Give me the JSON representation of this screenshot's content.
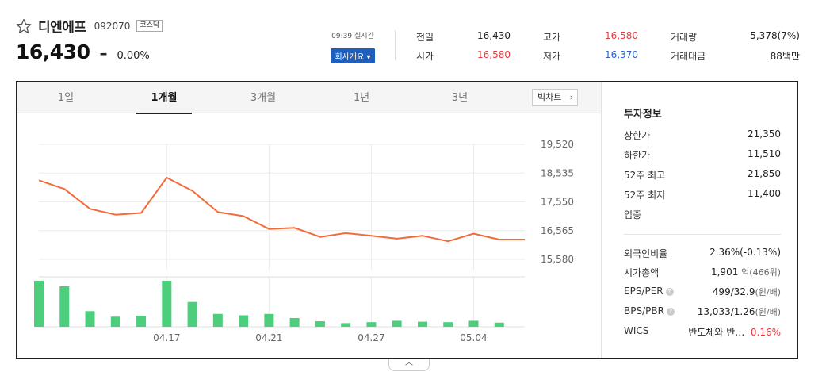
{
  "stock": {
    "name": "디엔에프",
    "code": "092070",
    "market": "코스닥",
    "price": "16,430",
    "change_symbol": "–",
    "change_pct": "0.00%",
    "time": "09:39 실시간",
    "company_button": "회사개요"
  },
  "quote": {
    "prev_close": {
      "label": "전일",
      "value": "16,430"
    },
    "high": {
      "label": "고가",
      "value": "16,580"
    },
    "volume": {
      "label": "거래량",
      "value": "5,378(7%)"
    },
    "open": {
      "label": "시가",
      "value": "16,580"
    },
    "low": {
      "label": "저가",
      "value": "16,370"
    },
    "amount": {
      "label": "거래대금",
      "value": "88백만"
    }
  },
  "tabs": [
    "1일",
    "1개월",
    "3개월",
    "1년",
    "3년"
  ],
  "active_tab": "1개월",
  "big_chart_label": "빅차트",
  "invest": {
    "title": "투자정보",
    "upper_limit": {
      "label": "상한가",
      "value": "21,350"
    },
    "lower_limit": {
      "label": "하한가",
      "value": "11,510"
    },
    "w52_high": {
      "label": "52주 최고",
      "value": "21,850"
    },
    "w52_low": {
      "label": "52주 최저",
      "value": "11,400"
    },
    "sector": {
      "label": "업종",
      "value": ""
    },
    "foreign": {
      "label": "외국인비율",
      "value": "2.36%(-0.13%)"
    },
    "mktcap": {
      "label": "시가총액",
      "value": "1,901",
      "unit": "억(466위)"
    },
    "eps_per": {
      "label": "EPS/PER",
      "value": "499/32.9",
      "unit": "(원/배)"
    },
    "bps_pbr": {
      "label": "BPS/PBR",
      "value": "13,033/1.26",
      "unit": "(원/배)"
    },
    "wics": {
      "label": "WICS",
      "value": "반도체와 반…",
      "pct": "0.16%"
    }
  },
  "colors": {
    "up": "#e8383d",
    "down": "#2a63c8",
    "line": "#f26b3a",
    "volume": "#4cce7c",
    "button": "#1e5fbe"
  },
  "chart_data": {
    "type": "line",
    "y_ticks": [
      "19,520",
      "18,535",
      "17,550",
      "16,565",
      "15,580"
    ],
    "ylim": [
      15580,
      19520
    ],
    "x_tick_labels": [
      "04.17",
      "04.21",
      "04.27",
      "05.04"
    ],
    "x_tick_index": [
      5,
      9,
      13,
      17
    ],
    "price": [
      18290,
      17990,
      17310,
      17110,
      17170,
      18380,
      17930,
      17200,
      17060,
      16620,
      16660,
      16350,
      16480,
      16390,
      16290,
      16390,
      16200,
      16460,
      16260,
      16260
    ],
    "volume_relative": [
      1.0,
      0.88,
      0.34,
      0.22,
      0.24,
      1.0,
      0.54,
      0.28,
      0.25,
      0.28,
      0.19,
      0.12,
      0.08,
      0.1,
      0.13,
      0.11,
      0.1,
      0.13,
      0.09,
      0.0
    ]
  }
}
